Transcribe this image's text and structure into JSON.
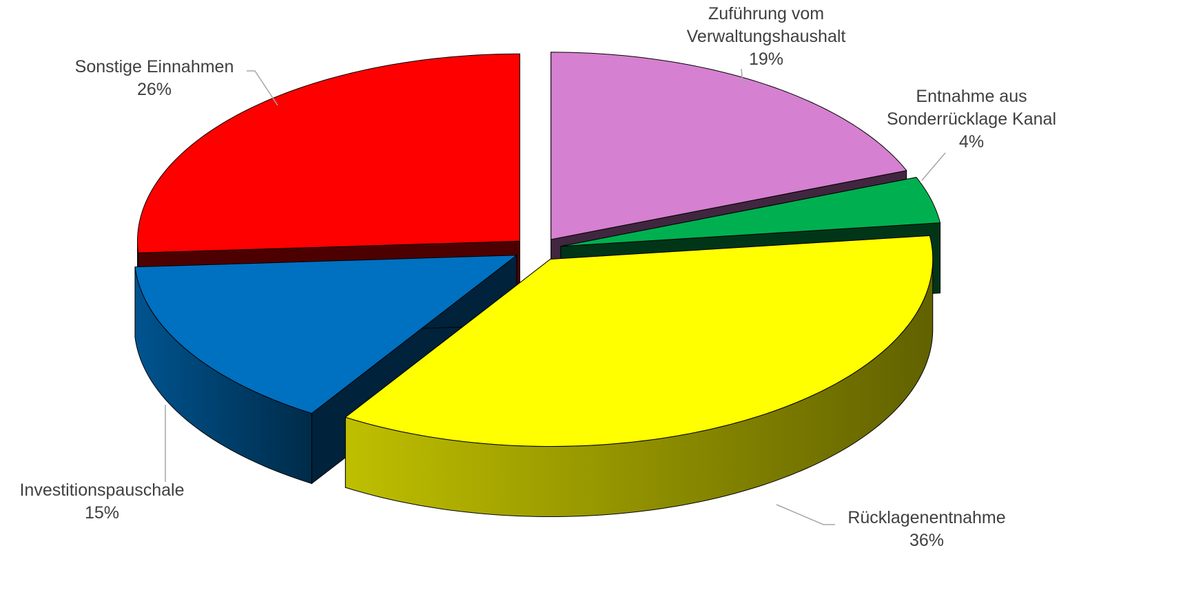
{
  "chart_data": {
    "type": "pie",
    "categories": [
      "Zuführung vom Verwaltungshaushalt",
      "Entnahme aus Sonderrücklage Kanal",
      "Rücklagenentnahme",
      "Investitionspauschale",
      "Sonstige Einnahmen"
    ],
    "values": [
      19,
      4,
      36,
      15,
      26
    ],
    "value_labels": [
      "19%",
      "4%",
      "36%",
      "15%",
      "26%"
    ],
    "colors": [
      "#d580d0",
      "#00b050",
      "#ffff00",
      "#0070c0",
      "#ff0000"
    ]
  }
}
